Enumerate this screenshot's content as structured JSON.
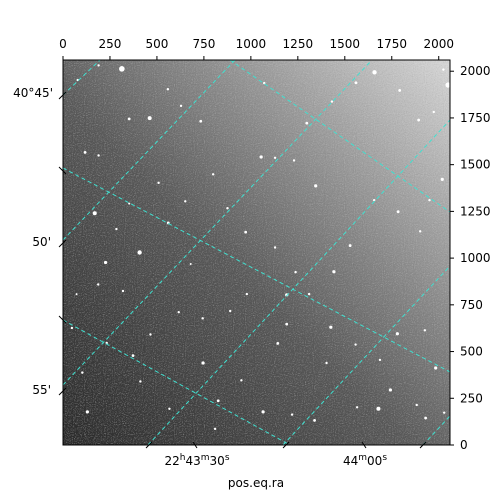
{
  "axes": {
    "xlabel": "pos.eq.ra",
    "top_ticks": [
      "0",
      "250",
      "500",
      "750",
      "1000",
      "1250",
      "1500",
      "1750",
      "2000"
    ],
    "right_ticks": [
      "0",
      "250",
      "500",
      "750",
      "1000",
      "1250",
      "1500",
      "1750",
      "2000"
    ],
    "left_ticks": [
      "40°45'",
      "50'",
      "55'"
    ],
    "bottom_ticks": [
      {
        "hours": "22",
        "minutes": "43",
        "seconds": "30"
      },
      {
        "hours": null,
        "minutes": "44",
        "seconds": "00"
      }
    ],
    "hour_sym": "h",
    "minute_sym": "m",
    "second_sym": "s"
  },
  "image": {
    "description_colors": {
      "sky_dark": "#2e2e2e",
      "sky_light": "#cfcfcf",
      "grid": "#40e0d0"
    },
    "stars": [
      [
        0.152,
        0.023,
        2.8
      ],
      [
        0.224,
        0.151,
        2.0
      ],
      [
        0.356,
        0.159,
        1.4
      ],
      [
        0.271,
        0.076,
        1.2
      ],
      [
        0.057,
        0.24,
        1.4
      ],
      [
        0.092,
        0.248,
        1.2
      ],
      [
        0.082,
        0.398,
        2.0
      ],
      [
        0.138,
        0.439,
        1.2
      ],
      [
        0.198,
        0.5,
        2.2
      ],
      [
        0.272,
        0.423,
        1.4
      ],
      [
        0.316,
        0.367,
        1.2
      ],
      [
        0.247,
        0.319,
        1.2
      ],
      [
        0.171,
        0.373,
        1.0
      ],
      [
        0.11,
        0.526,
        1.6
      ],
      [
        0.091,
        0.583,
        1.2
      ],
      [
        0.035,
        0.608,
        1.0
      ],
      [
        0.113,
        0.735,
        1.2
      ],
      [
        0.181,
        0.768,
        1.4
      ],
      [
        0.226,
        0.713,
        1.2
      ],
      [
        0.362,
        0.787,
        1.6
      ],
      [
        0.401,
        0.885,
        1.4
      ],
      [
        0.461,
        0.832,
        1.2
      ],
      [
        0.555,
        0.736,
        1.4
      ],
      [
        0.578,
        0.61,
        1.6
      ],
      [
        0.601,
        0.551,
        1.2
      ],
      [
        0.548,
        0.487,
        1.2
      ],
      [
        0.472,
        0.447,
        1.4
      ],
      [
        0.425,
        0.385,
        1.2
      ],
      [
        0.388,
        0.297,
        1.2
      ],
      [
        0.512,
        0.252,
        1.6
      ],
      [
        0.548,
        0.254,
        1.2
      ],
      [
        0.597,
        0.261,
        1.2
      ],
      [
        0.653,
        0.327,
        1.6
      ],
      [
        0.63,
        0.164,
        1.4
      ],
      [
        0.695,
        0.108,
        1.2
      ],
      [
        0.757,
        0.059,
        1.4
      ],
      [
        0.805,
        0.032,
        2.2
      ],
      [
        0.87,
        0.079,
        1.4
      ],
      [
        0.919,
        0.156,
        1.4
      ],
      [
        0.958,
        0.135,
        1.2
      ],
      [
        0.98,
        0.31,
        1.6
      ],
      [
        0.947,
        0.364,
        1.2
      ],
      [
        0.923,
        0.445,
        1.2
      ],
      [
        0.866,
        0.394,
        1.4
      ],
      [
        0.804,
        0.364,
        1.2
      ],
      [
        0.742,
        0.482,
        1.4
      ],
      [
        0.7,
        0.55,
        1.6
      ],
      [
        0.636,
        0.608,
        1.2
      ],
      [
        0.692,
        0.694,
        1.6
      ],
      [
        0.756,
        0.739,
        1.2
      ],
      [
        0.864,
        0.711,
        1.6
      ],
      [
        0.819,
        0.779,
        1.2
      ],
      [
        0.935,
        0.702,
        1.2
      ],
      [
        0.963,
        0.8,
        1.6
      ],
      [
        0.914,
        0.896,
        1.2
      ],
      [
        0.846,
        0.857,
        1.6
      ],
      [
        0.815,
        0.906,
        2.0
      ],
      [
        0.76,
        0.902,
        1.2
      ],
      [
        0.937,
        0.93,
        1.4
      ],
      [
        0.985,
        0.916,
        1.2
      ],
      [
        0.063,
        0.914,
        1.6
      ],
      [
        0.05,
        0.812,
        1.2
      ],
      [
        0.023,
        0.696,
        1.2
      ],
      [
        0.275,
        0.906,
        1.2
      ],
      [
        0.517,
        0.914,
        1.6
      ],
      [
        0.592,
        0.921,
        1.2
      ],
      [
        0.65,
        0.936,
        1.4
      ],
      [
        0.393,
        0.958,
        1.2
      ],
      [
        0.2,
        0.835,
        1.2
      ],
      [
        0.155,
        0.6,
        1.2
      ],
      [
        0.33,
        0.53,
        1.0
      ],
      [
        0.52,
        0.06,
        1.2
      ],
      [
        0.305,
        0.119,
        1.2
      ],
      [
        0.171,
        0.153,
        1.4
      ],
      [
        0.995,
        0.065,
        2.6
      ],
      [
        0.983,
        0.025,
        1.2
      ],
      [
        0.038,
        0.052,
        1.2
      ],
      [
        0.092,
        0.014,
        1.2
      ],
      [
        0.475,
        0.608,
        1.2
      ],
      [
        0.432,
        0.652,
        1.2
      ],
      [
        0.299,
        0.655,
        1.2
      ],
      [
        0.361,
        0.671,
        1.2
      ],
      [
        0.578,
        0.686,
        1.4
      ],
      [
        0.681,
        0.787,
        1.2
      ]
    ]
  }
}
